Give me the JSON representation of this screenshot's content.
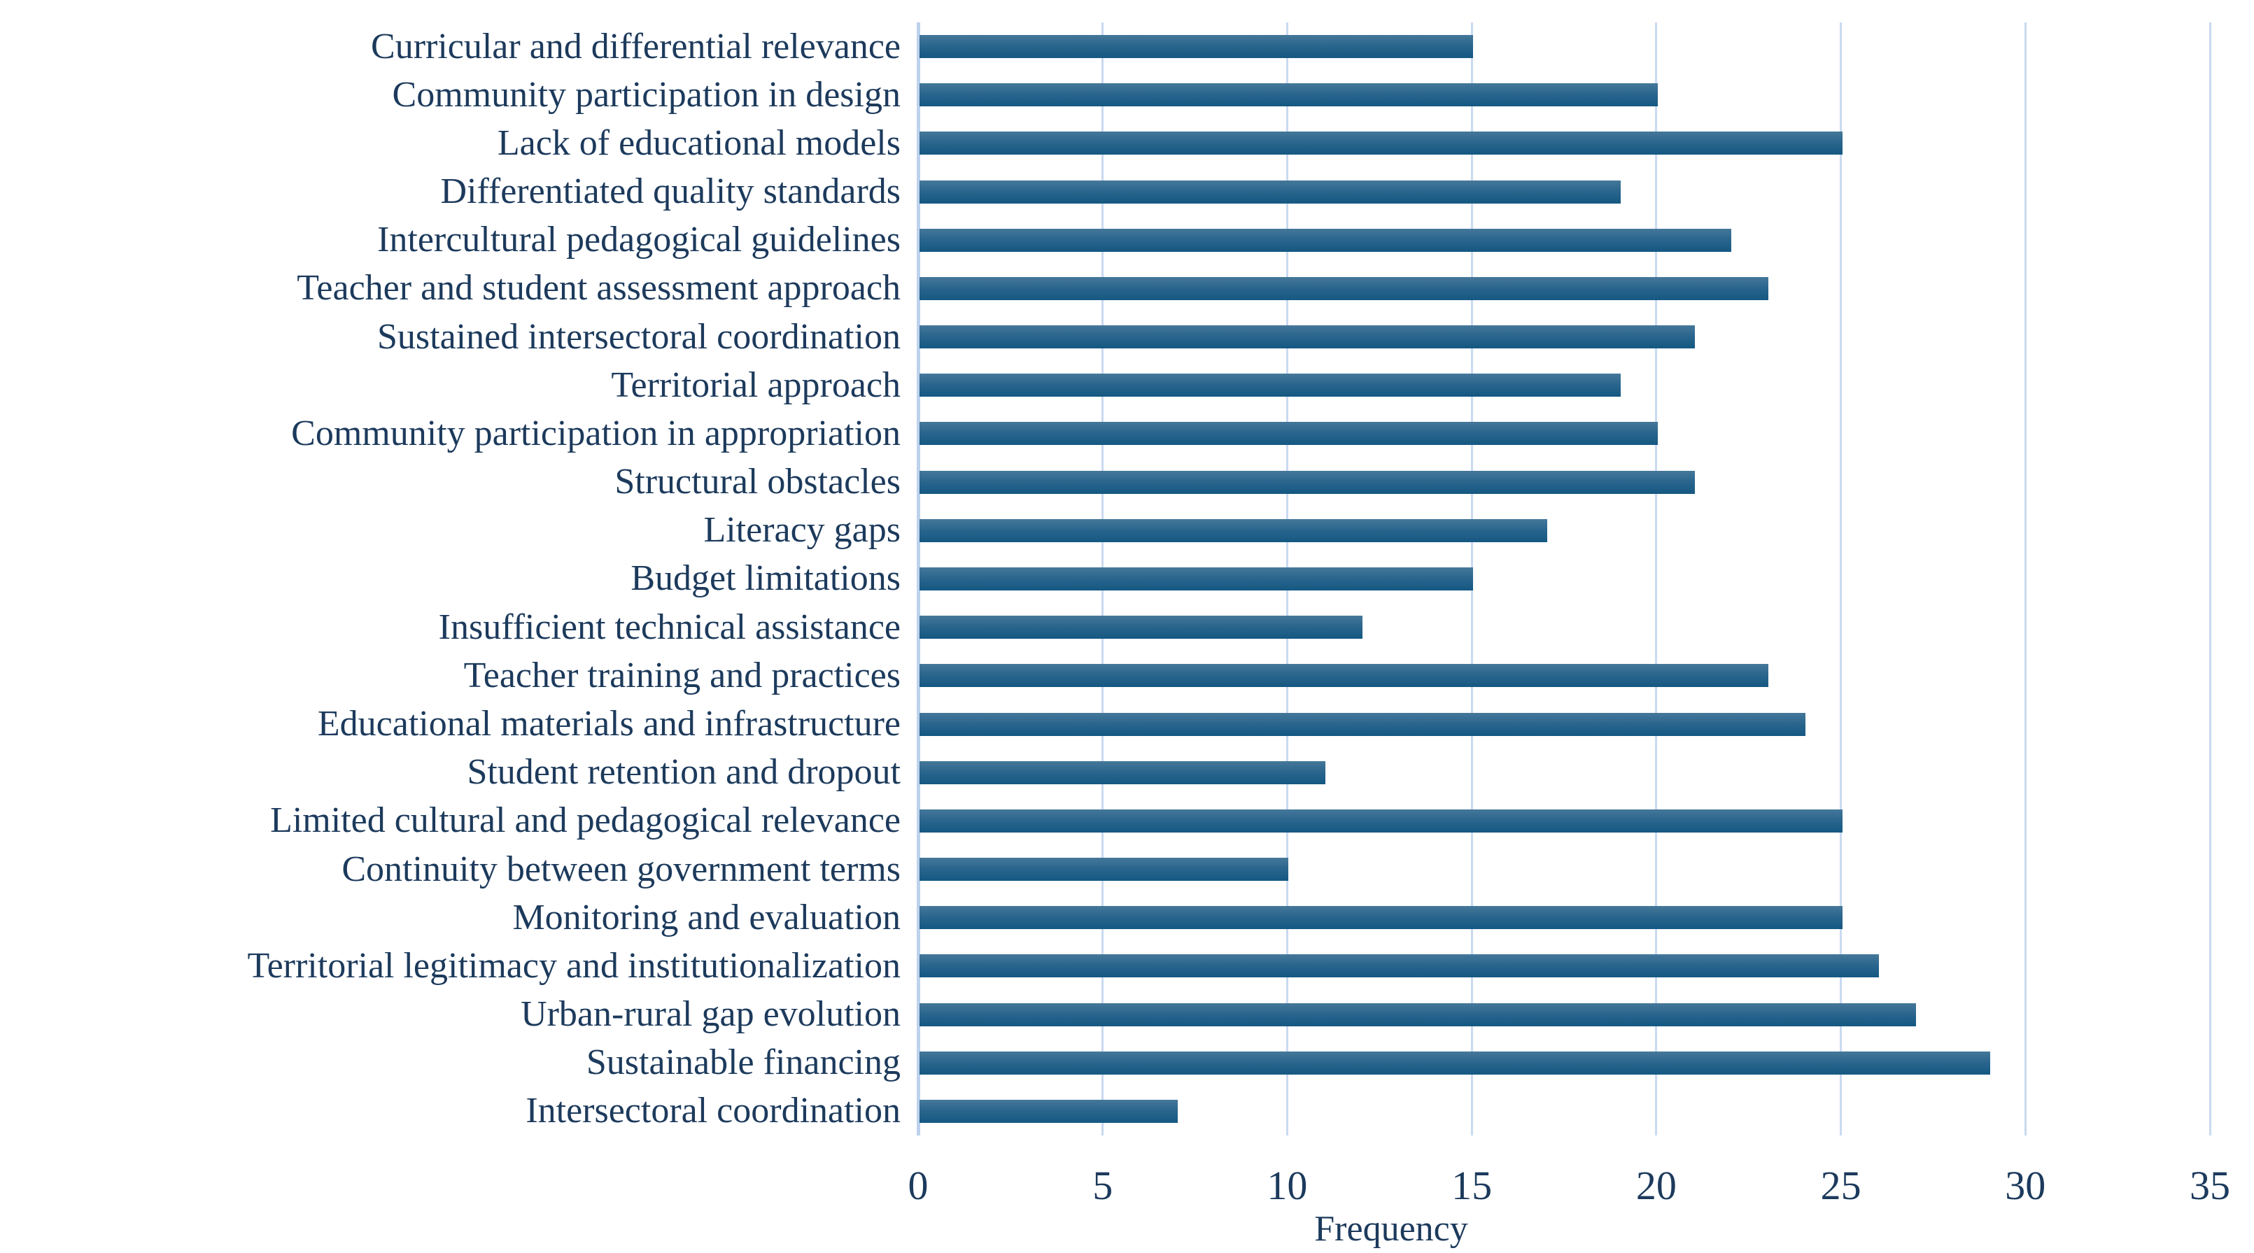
{
  "chart_data": {
    "type": "bar",
    "orientation": "horizontal",
    "title": "",
    "xlabel": "Frequency",
    "ylabel": "",
    "xlim": [
      0,
      35
    ],
    "xticks": [
      0,
      5,
      10,
      15,
      20,
      25,
      30,
      35
    ],
    "grid": "vertical",
    "legend": "none",
    "categories": [
      "Curricular and differential relevance",
      "Community participation in design",
      "Lack of educational models",
      "Differentiated quality standards",
      "Intercultural pedagogical guidelines",
      "Teacher and student assessment approach",
      "Sustained intersectoral coordination",
      "Territorial approach",
      "Community participation in appropriation",
      "Structural obstacles",
      "Literacy gaps",
      "Budget limitations",
      "Insufficient technical assistance",
      "Teacher training and practices",
      "Educational materials and infrastructure",
      "Student retention and dropout",
      "Limited cultural and pedagogical relevance",
      "Continuity between government terms",
      "Monitoring and evaluation",
      "Territorial legitimacy and institutionalization",
      "Urban-rural gap evolution",
      "Sustainable financing",
      "Intersectoral coordination"
    ],
    "values": [
      15,
      20,
      25,
      19,
      22,
      23,
      21,
      19,
      20,
      21,
      17,
      15,
      12,
      23,
      24,
      11,
      25,
      10,
      25,
      26,
      27,
      29,
      7
    ],
    "colors": {
      "bar_gradient_top": "#45789a",
      "bar_gradient_bottom": "#145882",
      "gridline": "#c9daf0",
      "axis_line": "#bdd2ec",
      "text": "#1c3a5c"
    }
  }
}
